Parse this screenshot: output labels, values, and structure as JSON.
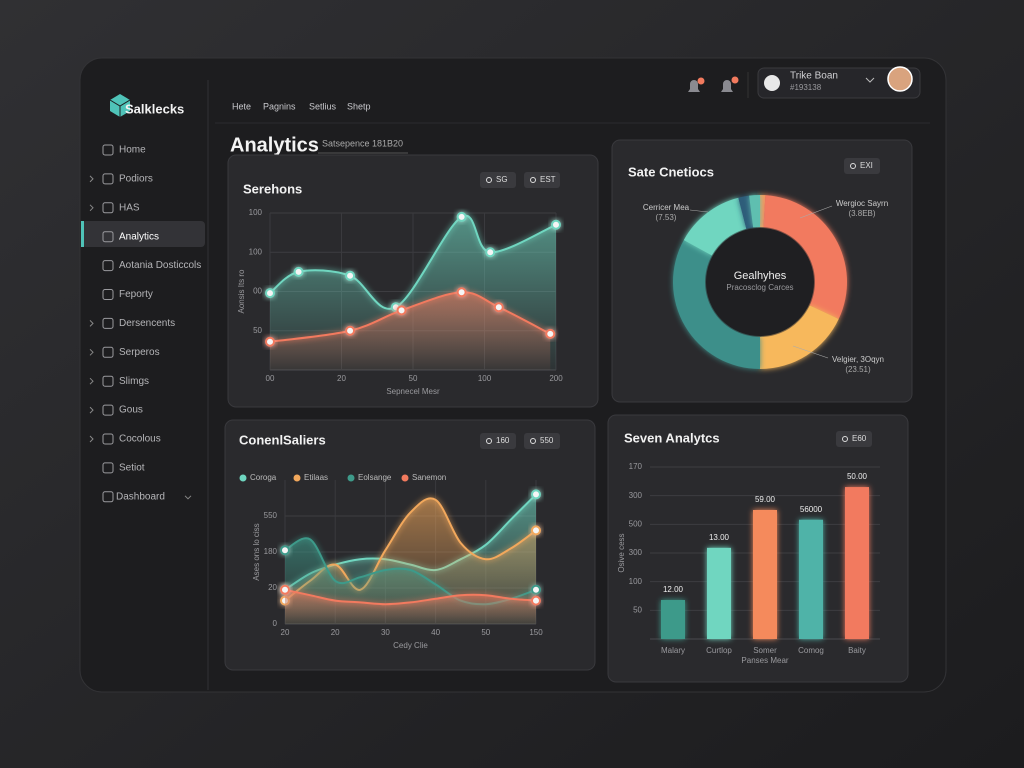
{
  "brand": "Salklecks",
  "sidebar": [
    "Home",
    "Podiors",
    "HAS",
    "Analytics",
    "Aotania Dosticcols",
    "Feporty",
    "Dersencents",
    "Serperos",
    "Slimgs",
    "Gous",
    "Cocolous",
    "Setiot",
    "Dashboard"
  ],
  "topnav": [
    "Hete",
    "Pagnins",
    "Setlius",
    "Shetp"
  ],
  "user": {
    "name": "Trike Boan",
    "id": "#193138"
  },
  "header": {
    "title": "Analytics",
    "subtitle": "Satsepence 181B20"
  },
  "chart_data": [
    {
      "type": "area",
      "title": "Serehons",
      "buttons": [
        "SG",
        "EST"
      ],
      "xlabel": "Sepnecel Mesr",
      "ylabel": "Aonsis Its ro",
      "xlim": [
        0,
        100
      ],
      "xticks": [
        {
          "value": 0,
          "label": "00"
        },
        {
          "value": 25,
          "label": "20"
        },
        50,
        {
          "value": 75,
          "label": "100"
        },
        {
          "value": 100,
          "label": "200"
        }
      ],
      "ylim": [
        0,
        200
      ],
      "yticks": [
        50,
        {
          "value": 100,
          "label": "00"
        },
        {
          "value": 150,
          "label": "100"
        },
        {
          "value": 200,
          "label": "100"
        }
      ],
      "grid": true,
      "series": [
        {
          "color": "#6fd6c0",
          "x": [
            0,
            10,
            28,
            44,
            67,
            77,
            100
          ],
          "values": [
            98,
            125,
            120,
            80,
            195,
            150,
            185
          ]
        },
        {
          "color": "#f27a5e",
          "x": [
            0,
            28,
            46,
            67,
            80,
            98
          ],
          "values": [
            36,
            50,
            76,
            99,
            80,
            46
          ]
        }
      ]
    },
    {
      "type": "donut",
      "title": "Sate Cnetiocs",
      "buttons": [
        "EXI"
      ],
      "center_title": "Gealhyhes",
      "center_subtitle": "Pracosclog Carces",
      "values": [
        1,
        31,
        18,
        33,
        13,
        2,
        2
      ],
      "colors": [
        "#f5a25d",
        "#f27a5e",
        "#f7b85c",
        "#3e8f8a",
        "#6fd6c0",
        "#2f5d7a",
        "#5fbfb0"
      ],
      "annotations": [
        {
          "text": "Cerricer Mea",
          "sub": "(7.53)"
        },
        {
          "text": "Wergioc Sayrn",
          "sub": "(3.8EB)"
        },
        {
          "text": "Velgier, 3Oqyn",
          "sub": "(23.51)"
        }
      ]
    },
    {
      "type": "area",
      "title": "ConenlSaliers",
      "buttons": [
        "160",
        "550"
      ],
      "legend": true,
      "xlabel": "Cedy Clie",
      "ylabel": "Ases ons lo ciss",
      "x": [
        0,
        10,
        20,
        30,
        40,
        50,
        60,
        70,
        80,
        90,
        100
      ],
      "xlim": [
        0,
        100
      ],
      "xticks": [
        {
          "value": 0,
          "label": "20"
        },
        20,
        {
          "value": 40,
          "label": "30"
        },
        {
          "value": 60,
          "label": "40"
        },
        {
          "value": 80,
          "label": "50"
        },
        {
          "value": 100,
          "label": "150"
        }
      ],
      "ylim": [
        0,
        80
      ],
      "yticks": [
        0,
        20,
        {
          "value": 40,
          "label": "180"
        },
        {
          "value": 60,
          "label": "550"
        }
      ],
      "grid": true,
      "series": [
        {
          "name": "Coroga",
          "color": "#6fd6c0",
          "values": [
            19,
            28,
            33,
            36,
            36,
            33,
            30,
            36,
            44,
            58,
            72
          ]
        },
        {
          "name": "Etilaas",
          "color": "#f2a85c",
          "values": [
            13,
            24,
            33,
            19,
            41,
            62,
            69,
            45,
            36,
            42,
            52
          ]
        },
        {
          "name": "Eolsange",
          "color": "#3e9a8a",
          "values": [
            41,
            47,
            24,
            26,
            30,
            30,
            22,
            13,
            11,
            14,
            19
          ]
        },
        {
          "name": "Sanemon",
          "color": "#f27a5e",
          "values": [
            19,
            16,
            13,
            12,
            11,
            12,
            14,
            16,
            16,
            14,
            13
          ]
        }
      ]
    },
    {
      "type": "bar",
      "title": "Seven Analytcs",
      "buttons": [
        "E60"
      ],
      "xlabel": "Panses Mear",
      "ylabel": "Osive cess",
      "categories": [
        "Malary",
        "Curtlop",
        "Somer",
        "Comog",
        "Baity"
      ],
      "values": [
        68,
        159,
        225,
        208,
        265
      ],
      "colors": [
        "#3e9a8a",
        "#6fd6c0",
        "#f58a5c",
        "#4fb3a8",
        "#f27a5e"
      ],
      "annotations": [
        "12.00",
        "13.00",
        "59.00",
        "56000",
        "50.00"
      ],
      "ylim": [
        0,
        300
      ],
      "yticks": [
        50,
        100,
        {
          "value": 150,
          "label": "300"
        },
        {
          "value": 200,
          "label": "500"
        },
        {
          "value": 250,
          "label": "300"
        },
        {
          "value": 300,
          "label": "170"
        }
      ],
      "grid": true
    }
  ]
}
